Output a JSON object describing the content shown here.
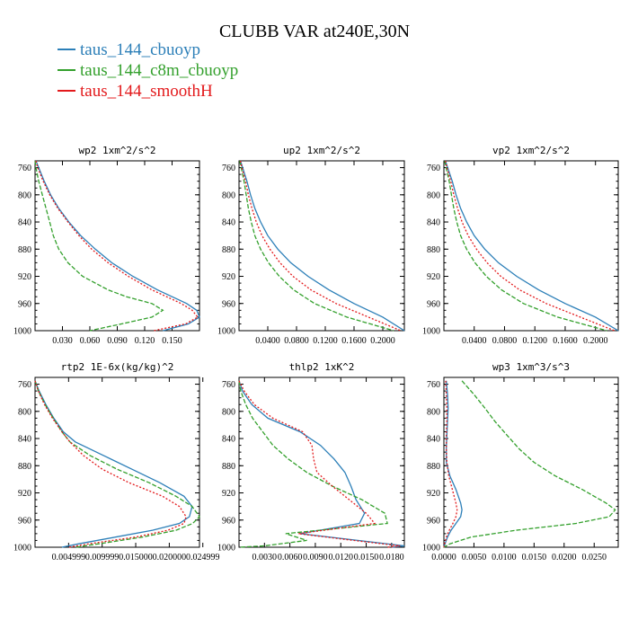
{
  "title": "CLUBB VAR at240E,30N",
  "legend": [
    {
      "label": "taus_144_cbuoyp",
      "color": "#2c7fb8"
    },
    {
      "label": "taus_144_c8m_cbuoyp",
      "color": "#33a02c"
    },
    {
      "label": "taus_144_smoothH",
      "color": "#e31a1c"
    }
  ],
  "chart_data": [
    {
      "type": "line",
      "title": "wp2  1xm^2/s^2",
      "xlim": [
        0.0,
        0.18
      ],
      "ylim": [
        1000,
        750
      ],
      "xticks": [
        "0.030",
        "0.060",
        "0.090",
        "0.120",
        "0.150"
      ],
      "xtick_values": [
        0.03,
        0.06,
        0.09,
        0.12,
        0.15
      ],
      "yticks": [
        "760",
        "800",
        "840",
        "880",
        "920",
        "960",
        "1000"
      ],
      "ytick_values": [
        760,
        800,
        840,
        880,
        920,
        960,
        1000
      ],
      "y": [
        750,
        760,
        780,
        800,
        820,
        840,
        860,
        880,
        900,
        920,
        940,
        950,
        960,
        970,
        980,
        990,
        1000
      ],
      "series": [
        {
          "name": "taus_144_cbuoyp",
          "x": [
            0.001,
            0.004,
            0.01,
            0.017,
            0.026,
            0.037,
            0.05,
            0.066,
            0.084,
            0.107,
            0.134,
            0.15,
            0.166,
            0.177,
            0.18,
            0.168,
            0.14
          ]
        },
        {
          "name": "taus_144_c8m_cbuoyp",
          "x": [
            0.0,
            0.001,
            0.004,
            0.008,
            0.012,
            0.016,
            0.02,
            0.026,
            0.036,
            0.052,
            0.08,
            0.1,
            0.128,
            0.14,
            0.128,
            0.095,
            0.06
          ]
        },
        {
          "name": "taus_144_smoothH",
          "x": [
            0.001,
            0.003,
            0.009,
            0.016,
            0.025,
            0.036,
            0.048,
            0.062,
            0.08,
            0.102,
            0.128,
            0.144,
            0.16,
            0.172,
            0.178,
            0.165,
            0.13
          ]
        }
      ]
    },
    {
      "type": "line",
      "title": "up2  1xm^2/s^2",
      "xlim": [
        0.0,
        0.23
      ],
      "ylim": [
        1000,
        750
      ],
      "xticks": [
        "0.0400",
        "0.0800",
        "0.1200",
        "0.1600",
        "0.2000"
      ],
      "xtick_values": [
        0.04,
        0.08,
        0.12,
        0.16,
        0.2
      ],
      "yticks": [
        "760",
        "800",
        "840",
        "880",
        "920",
        "960",
        "1000"
      ],
      "ytick_values": [
        760,
        800,
        840,
        880,
        920,
        960,
        1000
      ],
      "y": [
        750,
        760,
        780,
        800,
        820,
        840,
        860,
        880,
        900,
        920,
        940,
        960,
        980,
        1000
      ],
      "series": [
        {
          "name": "taus_144_cbuoyp",
          "x": [
            0.002,
            0.005,
            0.011,
            0.016,
            0.022,
            0.03,
            0.04,
            0.054,
            0.072,
            0.096,
            0.125,
            0.16,
            0.2,
            0.23
          ]
        },
        {
          "name": "taus_144_c8m_cbuoyp",
          "x": [
            0.001,
            0.003,
            0.007,
            0.01,
            0.013,
            0.017,
            0.022,
            0.03,
            0.041,
            0.056,
            0.076,
            0.105,
            0.15,
            0.215
          ]
        },
        {
          "name": "taus_144_smoothH",
          "x": [
            0.002,
            0.004,
            0.009,
            0.013,
            0.018,
            0.024,
            0.032,
            0.043,
            0.057,
            0.075,
            0.1,
            0.135,
            0.18,
            0.225
          ]
        }
      ]
    },
    {
      "type": "line",
      "title": "vp2  1xm^2/s^2",
      "xlim": [
        0.0,
        0.23
      ],
      "ylim": [
        1000,
        750
      ],
      "xticks": [
        "0.0400",
        "0.0800",
        "0.1200",
        "0.1600",
        "0.2000"
      ],
      "xtick_values": [
        0.04,
        0.08,
        0.12,
        0.16,
        0.2
      ],
      "yticks": [
        "760",
        "800",
        "840",
        "880",
        "920",
        "960",
        "1000"
      ],
      "ytick_values": [
        760,
        800,
        840,
        880,
        920,
        960,
        1000
      ],
      "y": [
        750,
        760,
        780,
        800,
        820,
        840,
        860,
        880,
        900,
        920,
        940,
        960,
        980,
        1000
      ],
      "series": [
        {
          "name": "taus_144_cbuoyp",
          "x": [
            0.002,
            0.005,
            0.011,
            0.016,
            0.022,
            0.03,
            0.04,
            0.054,
            0.072,
            0.096,
            0.125,
            0.16,
            0.2,
            0.23
          ]
        },
        {
          "name": "taus_144_c8m_cbuoyp",
          "x": [
            0.001,
            0.003,
            0.007,
            0.01,
            0.013,
            0.017,
            0.022,
            0.03,
            0.041,
            0.056,
            0.076,
            0.105,
            0.15,
            0.215
          ]
        },
        {
          "name": "taus_144_smoothH",
          "x": [
            0.002,
            0.004,
            0.009,
            0.013,
            0.018,
            0.024,
            0.032,
            0.043,
            0.057,
            0.075,
            0.1,
            0.135,
            0.18,
            0.225
          ]
        }
      ]
    },
    {
      "type": "line",
      "title": "rtp2  1E-6x(kg/kg)^2",
      "xlim": [
        0.0,
        0.0245
      ],
      "ylim": [
        1000,
        750
      ],
      "xticks": [
        "0.004999",
        "0.009999",
        "0.015000",
        "0.020000",
        "0.024999"
      ],
      "xtick_values": [
        0.004999,
        0.009999,
        0.015,
        0.02,
        0.024999
      ],
      "yticks": [
        "760",
        "800",
        "840",
        "880",
        "920",
        "960",
        "1000"
      ],
      "ytick_values": [
        760,
        800,
        840,
        880,
        920,
        960,
        1000
      ],
      "y": [
        755,
        770,
        790,
        810,
        830,
        845,
        865,
        885,
        905,
        925,
        940,
        955,
        965,
        975,
        985,
        995,
        1000
      ],
      "series": [
        {
          "name": "taus_144_cbuoyp",
          "x": [
            0.0,
            0.0006,
            0.0016,
            0.0028,
            0.0042,
            0.006,
            0.0102,
            0.0144,
            0.0186,
            0.0222,
            0.0234,
            0.023,
            0.0215,
            0.0175,
            0.012,
            0.0065,
            0.004
          ]
        },
        {
          "name": "taus_144_c8m_cbuoyp",
          "x": [
            0.0,
            0.0005,
            0.0015,
            0.0027,
            0.004,
            0.0052,
            0.0082,
            0.0122,
            0.017,
            0.021,
            0.0234,
            0.0245,
            0.0235,
            0.021,
            0.016,
            0.0095,
            0.006
          ]
        },
        {
          "name": "taus_144_smoothH",
          "x": [
            0.0,
            0.0005,
            0.0014,
            0.0026,
            0.004,
            0.0052,
            0.0072,
            0.01,
            0.014,
            0.019,
            0.0215,
            0.0225,
            0.0222,
            0.0198,
            0.015,
            0.008,
            0.005
          ]
        }
      ]
    },
    {
      "type": "line",
      "title": "thlp2  1xK^2",
      "xlim": [
        0.0,
        0.0195
      ],
      "ylim": [
        1000,
        750
      ],
      "xticks": [
        "0.0030",
        "0.0060",
        "0.0090",
        "0.0120",
        "0.0150",
        "0.0180"
      ],
      "xtick_values": [
        0.003,
        0.006,
        0.009,
        0.012,
        0.015,
        0.018
      ],
      "yticks": [
        "760",
        "800",
        "840",
        "880",
        "920",
        "960",
        "1000"
      ],
      "ytick_values": [
        760,
        800,
        840,
        880,
        920,
        960,
        1000
      ],
      "y": [
        755,
        770,
        790,
        810,
        830,
        850,
        870,
        890,
        910,
        930,
        950,
        965,
        980,
        990,
        998,
        1000
      ],
      "series": [
        {
          "name": "taus_144_cbuoyp",
          "x": [
            0.0,
            0.0004,
            0.0015,
            0.0034,
            0.0072,
            0.0096,
            0.0112,
            0.0125,
            0.0132,
            0.0138,
            0.0148,
            0.0142,
            0.0072,
            0.014,
            0.0195,
            0.018
          ]
        },
        {
          "name": "taus_144_c8m_cbuoyp",
          "x": [
            0.0,
            0.0002,
            0.0008,
            0.0016,
            0.0028,
            0.004,
            0.0058,
            0.008,
            0.011,
            0.0145,
            0.0172,
            0.0175,
            0.0055,
            0.008,
            0.003,
            0.0
          ]
        },
        {
          "name": "taus_144_smoothH",
          "x": [
            0.0,
            0.0006,
            0.0018,
            0.004,
            0.0075,
            0.0086,
            0.0088,
            0.0092,
            0.011,
            0.013,
            0.015,
            0.016,
            0.007,
            0.0135,
            0.019,
            0.0175
          ]
        }
      ]
    },
    {
      "type": "line",
      "title": "wp3  1xm^3/s^3",
      "xlim": [
        0.0,
        0.029
      ],
      "ylim": [
        1000,
        750
      ],
      "xticks": [
        "0.0000",
        "0.0050",
        "0.0100",
        "0.0150",
        "0.0200",
        "0.0250"
      ],
      "xtick_values": [
        0.0,
        0.005,
        0.01,
        0.015,
        0.02,
        0.025
      ],
      "yticks": [
        "760",
        "800",
        "840",
        "880",
        "920",
        "960",
        "1000"
      ],
      "ytick_values": [
        760,
        800,
        840,
        880,
        920,
        960,
        1000
      ],
      "y": [
        755,
        775,
        795,
        815,
        835,
        855,
        875,
        895,
        915,
        935,
        945,
        955,
        965,
        975,
        985,
        995,
        1000
      ],
      "series": [
        {
          "name": "taus_144_cbuoyp",
          "x": [
            0.0004,
            0.0006,
            0.0007,
            0.0006,
            0.0005,
            0.0004,
            0.0004,
            0.001,
            0.002,
            0.0028,
            0.003,
            0.0028,
            0.002,
            0.0012,
            0.0006,
            0.0002,
            0.0
          ]
        },
        {
          "name": "taus_144_c8m_cbuoyp",
          "x": [
            0.003,
            0.005,
            0.0068,
            0.0085,
            0.0105,
            0.0125,
            0.015,
            0.0185,
            0.023,
            0.027,
            0.0285,
            0.0275,
            0.022,
            0.012,
            0.0045,
            0.001,
            0.0
          ]
        },
        {
          "name": "taus_144_smoothH",
          "x": [
            0.0003,
            0.0004,
            0.0005,
            0.0005,
            0.0004,
            0.0004,
            0.0005,
            0.0008,
            0.0014,
            0.002,
            0.0022,
            0.002,
            0.0015,
            0.0009,
            0.0004,
            0.0001,
            0.0
          ]
        }
      ]
    }
  ]
}
